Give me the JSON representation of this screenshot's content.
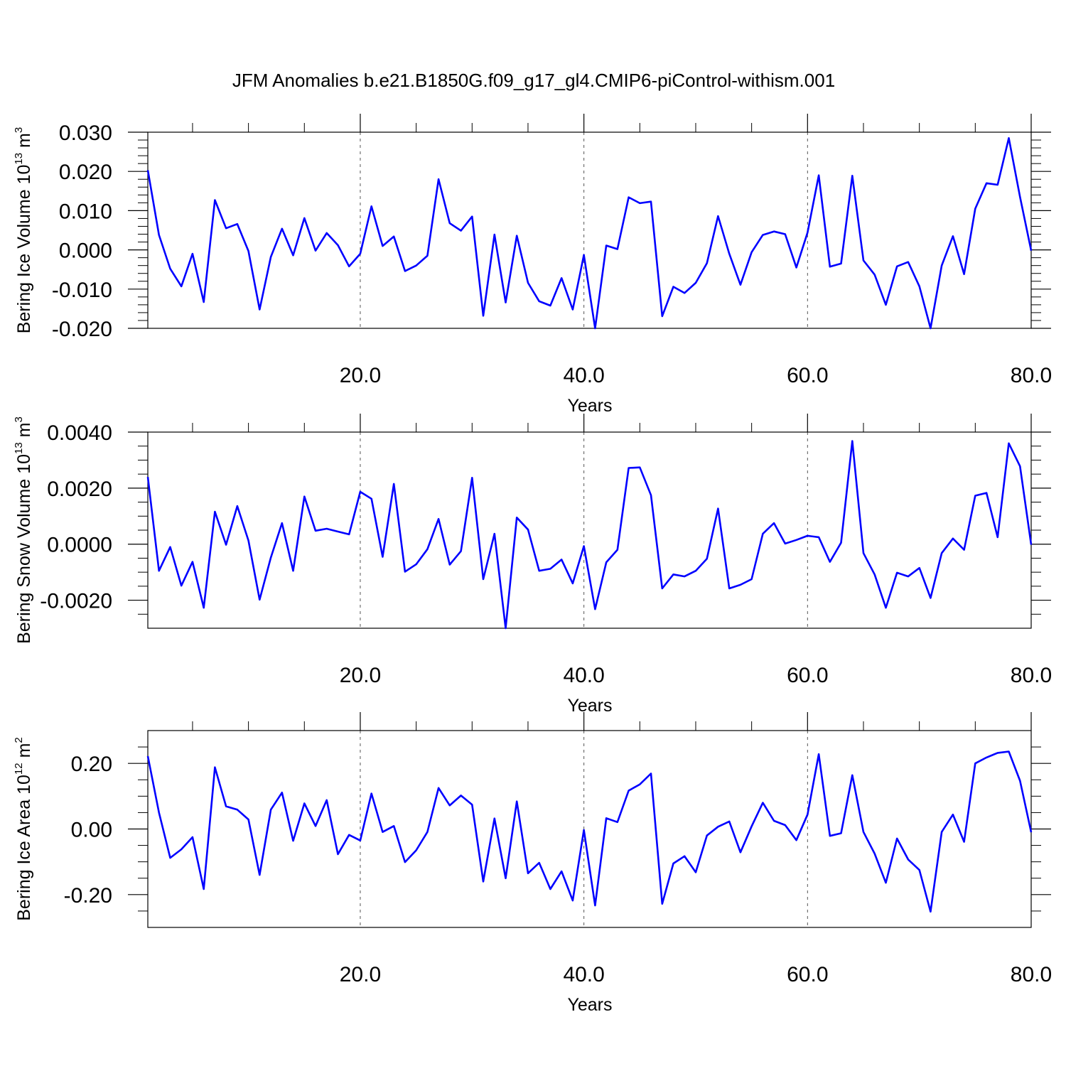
{
  "title": "JFM Anomalies b.e21.B1850G.f09_g17_gl4.CMIP6-piControl-withism.001",
  "line_color": "#0000ff",
  "chart_data": [
    {
      "type": "line",
      "ylabel_main": "Bering Ice Volume 10",
      "ylabel_exp": "13",
      "ylabel_unit": " m",
      "ylabel_unit_exp": "3",
      "xlabel": "Years",
      "xlim": [
        1,
        80
      ],
      "ylim": [
        -0.02,
        0.03
      ],
      "xticks": [
        "20.0",
        "40.0",
        "60.0",
        "80.0"
      ],
      "xtick_values": [
        20,
        40,
        60,
        80
      ],
      "yticks": [
        "0.030",
        "0.020",
        "0.010",
        "0.000",
        "-0.010",
        "-0.020"
      ],
      "ytick_values": [
        0.03,
        0.02,
        0.01,
        0.0,
        -0.01,
        -0.02
      ],
      "x_start": 1,
      "values": [
        0.0203,
        0.0038,
        -0.0048,
        -0.0093,
        -0.001,
        -0.0133,
        0.0127,
        0.0055,
        0.0066,
        -0.0003,
        -0.0152,
        -0.0018,
        0.0054,
        -0.0014,
        0.0081,
        -0.0002,
        0.0043,
        0.0012,
        -0.0042,
        -0.001,
        0.0111,
        0.001,
        0.0034,
        -0.0054,
        -0.004,
        -0.0015,
        0.018,
        0.0068,
        0.0049,
        0.0085,
        -0.0168,
        0.0039,
        -0.0134,
        0.0036,
        -0.0084,
        -0.0131,
        -0.0142,
        -0.0072,
        -0.0152,
        -0.0013,
        -0.02,
        0.0011,
        0.0002,
        0.0134,
        0.0119,
        0.0123,
        -0.0169,
        -0.0094,
        -0.011,
        -0.0084,
        -0.0034,
        0.0086,
        -0.001,
        -0.0089,
        -0.0006,
        0.0038,
        0.0047,
        0.004,
        -0.0045,
        0.0044,
        0.019,
        -0.0043,
        -0.0035,
        0.0189,
        -0.0027,
        -0.0063,
        -0.014,
        -0.0042,
        -0.0031,
        -0.0093,
        -0.02,
        -0.004,
        0.0035,
        -0.0062,
        0.0105,
        0.017,
        0.0166,
        0.0285,
        0.0135,
        -0.0002
      ]
    },
    {
      "type": "line",
      "ylabel_main": "Bering Snow Volume 10",
      "ylabel_exp": "13",
      "ylabel_unit": " m",
      "ylabel_unit_exp": "3",
      "xlabel": "Years",
      "xlim": [
        1,
        80
      ],
      "ylim": [
        -0.003,
        0.004
      ],
      "xticks": [
        "20.0",
        "40.0",
        "60.0",
        "80.0"
      ],
      "xtick_values": [
        20,
        40,
        60,
        80
      ],
      "yticks": [
        "0.0040",
        "0.0020",
        "0.0000",
        "-0.0020"
      ],
      "ytick_values": [
        0.004,
        0.002,
        0.0,
        -0.002
      ],
      "x_start": 1,
      "values": [
        0.0024,
        -0.00095,
        -0.0001,
        -0.00148,
        -0.00063,
        -0.00227,
        0.00116,
        -2e-05,
        0.00136,
        0.00013,
        -0.00198,
        -0.00048,
        0.00075,
        -0.00095,
        0.0017,
        0.00048,
        0.00055,
        0.00045,
        0.00035,
        0.00187,
        0.00162,
        -0.00045,
        0.00215,
        -0.00098,
        -0.00072,
        -0.00018,
        0.0009,
        -0.00073,
        -0.00025,
        0.00237,
        -0.00125,
        0.00037,
        -0.003,
        0.00095,
        0.00052,
        -0.00095,
        -0.00088,
        -0.00055,
        -0.0014,
        -7e-05,
        -0.00232,
        -0.00065,
        -0.0002,
        0.00272,
        0.00274,
        0.00175,
        -0.00158,
        -0.00108,
        -0.00115,
        -0.00095,
        -0.00052,
        0.00127,
        -0.00158,
        -0.00145,
        -0.00125,
        0.00037,
        0.00075,
        2e-05,
        0.00015,
        0.0003,
        0.00025,
        -0.00063,
        5e-05,
        0.00368,
        -0.00032,
        -0.00108,
        -0.00227,
        -0.00102,
        -0.00115,
        -0.00085,
        -0.00192,
        -0.00032,
        0.0002,
        -0.0002,
        0.00173,
        0.00183,
        0.00025,
        0.0036,
        0.00278,
        -2e-05
      ]
    },
    {
      "type": "line",
      "ylabel_main": "Bering Ice Area 10",
      "ylabel_exp": "12",
      "ylabel_unit": " m",
      "ylabel_unit_exp": "2",
      "xlabel": "Years",
      "xlim": [
        1,
        80
      ],
      "ylim": [
        -0.3,
        0.3
      ],
      "xticks": [
        "20.0",
        "40.0",
        "60.0",
        "80.0"
      ],
      "xtick_values": [
        20,
        40,
        60,
        80
      ],
      "yticks": [
        "0.20",
        "0.00",
        "-0.20"
      ],
      "ytick_values": [
        0.2,
        0.0,
        -0.2
      ],
      "x_start": 1,
      "values": [
        0.222,
        0.05,
        -0.088,
        -0.062,
        -0.025,
        -0.183,
        0.188,
        0.069,
        0.059,
        0.029,
        -0.14,
        0.059,
        0.111,
        -0.036,
        0.078,
        0.009,
        0.088,
        -0.077,
        -0.018,
        -0.035,
        0.108,
        -0.009,
        0.009,
        -0.101,
        -0.065,
        -0.009,
        0.125,
        0.072,
        0.102,
        0.074,
        -0.16,
        0.032,
        -0.15,
        0.084,
        -0.135,
        -0.103,
        -0.183,
        -0.129,
        -0.218,
        -0.003,
        -0.233,
        0.033,
        0.021,
        0.117,
        0.136,
        0.169,
        -0.228,
        -0.105,
        -0.083,
        -0.132,
        -0.02,
        0.007,
        0.023,
        -0.071,
        0.008,
        0.08,
        0.025,
        0.012,
        -0.034,
        0.044,
        0.228,
        -0.021,
        -0.013,
        0.164,
        -0.009,
        -0.075,
        -0.164,
        -0.029,
        -0.093,
        -0.125,
        -0.252,
        -0.009,
        0.044,
        -0.039,
        0.2,
        0.218,
        0.232,
        0.236,
        0.147,
        -0.01
      ]
    }
  ]
}
